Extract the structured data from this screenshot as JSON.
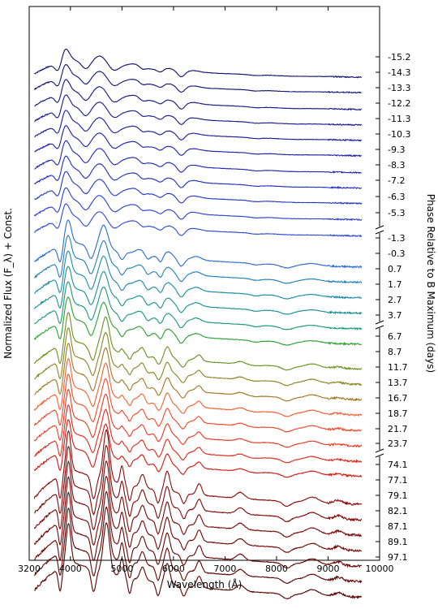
{
  "chart_data": {
    "type": "line",
    "xlabel": "Wavelength (Å)",
    "ylabel": "Normalized Flux (F_λ) + Const.",
    "ylabel_right": "Phase Relative to B Maximum (days)",
    "xlim": [
      3200,
      10000
    ],
    "x_ticks": [
      "3200",
      "4000",
      "5000",
      "6000",
      "7000",
      "8000",
      "9000",
      "10000"
    ],
    "x_tick_values": [
      3200,
      4000,
      5000,
      6000,
      7000,
      8000,
      9000,
      10000
    ],
    "grid": false,
    "series": [
      {
        "name": "-15.2",
        "color": "#0d0d6b",
        "x_start": 3300,
        "x_end": 9650
      },
      {
        "name": "-14.3",
        "color": "#12127a",
        "x_start": 3300,
        "x_end": 9650
      },
      {
        "name": "-13.3",
        "color": "#151585",
        "x_start": 3300,
        "x_end": 9650
      },
      {
        "name": "-12.2",
        "color": "#181890",
        "x_start": 3300,
        "x_end": 9650
      },
      {
        "name": "-11.3",
        "color": "#1a1a9c",
        "x_start": 3300,
        "x_end": 9650
      },
      {
        "name": "-10.3",
        "color": "#1c1fa8",
        "x_start": 3300,
        "x_end": 9650
      },
      {
        "name": "-9.3",
        "color": "#1f26b4",
        "x_start": 3300,
        "x_end": 9650
      },
      {
        "name": "-8.3",
        "color": "#222dc0",
        "x_start": 3300,
        "x_end": 9650
      },
      {
        "name": "-7.2",
        "color": "#2536c8",
        "x_start": 3300,
        "x_end": 9650
      },
      {
        "name": "-6.3",
        "color": "#2a40d0",
        "x_start": 3300,
        "x_end": 9650
      },
      {
        "name": "-5.3",
        "color": "#2e4ad8",
        "x_start": 3300,
        "x_end": 9650
      },
      {
        "name": "-1.3",
        "color": "#2a6ad0",
        "x_start": 3300,
        "x_end": 9650
      },
      {
        "name": "-0.3",
        "color": "#2280b8",
        "x_start": 3300,
        "x_end": 9650
      },
      {
        "name": "0.7",
        "color": "#1d8aa8",
        "x_start": 3300,
        "x_end": 9650
      },
      {
        "name": "1.7",
        "color": "#1a9090",
        "x_start": 3300,
        "x_end": 9650
      },
      {
        "name": "2.7",
        "color": "#1a9878",
        "x_start": 3300,
        "x_end": 9650
      },
      {
        "name": "3.7",
        "color": "#2aa030",
        "x_start": 3300,
        "x_end": 9650
      },
      {
        "name": "6.7",
        "color": "#6a9020",
        "x_start": 3300,
        "x_end": 9650
      },
      {
        "name": "8.7",
        "color": "#8a8420",
        "x_start": 3300,
        "x_end": 9650
      },
      {
        "name": "11.7",
        "color": "#a07822",
        "x_start": 3300,
        "x_end": 9650
      },
      {
        "name": "13.7",
        "color": "#f06030",
        "x_start": 3300,
        "x_end": 9650
      },
      {
        "name": "16.7",
        "color": "#f04a28",
        "x_start": 3300,
        "x_end": 9650
      },
      {
        "name": "18.7",
        "color": "#e83a22",
        "x_start": 3300,
        "x_end": 9650
      },
      {
        "name": "21.7",
        "color": "#e02a1c",
        "x_start": 3300,
        "x_end": 9650
      },
      {
        "name": "23.7",
        "color": "#d01a14",
        "x_start": 3300,
        "x_end": 9650
      },
      {
        "name": "74.1",
        "color": "#8a0a0a",
        "x_start": 3300,
        "x_end": 9650
      },
      {
        "name": "77.1",
        "color": "#800808",
        "x_start": 3300,
        "x_end": 9650
      },
      {
        "name": "79.1",
        "color": "#780606",
        "x_start": 3300,
        "x_end": 9650
      },
      {
        "name": "82.1",
        "color": "#700505",
        "x_start": 3300,
        "x_end": 9650
      },
      {
        "name": "87.1",
        "color": "#680404",
        "x_start": 3300,
        "x_end": 9650
      },
      {
        "name": "89.1",
        "color": "#600303",
        "x_start": 3300,
        "x_end": 9650
      },
      {
        "name": "97.1",
        "color": "#580202",
        "x_start": 3300,
        "x_end": 9650
      }
    ]
  }
}
